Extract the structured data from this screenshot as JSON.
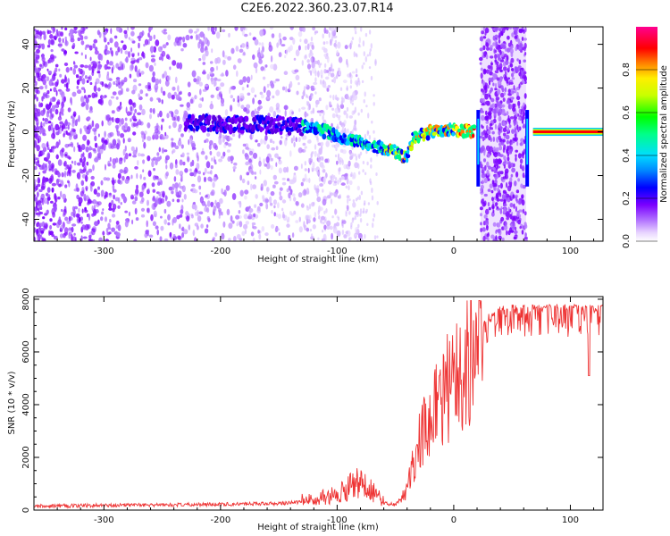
{
  "title": "C2E6.2022.360.23.07.R14",
  "chart_data": [
    {
      "type": "heatmap",
      "xlabel": "Height of straight line (km)",
      "ylabel": "Frequency (Hz)",
      "xlim": [
        -360,
        128
      ],
      "ylim": [
        -50,
        48
      ],
      "xticks": [
        -300,
        -200,
        -100,
        0,
        100
      ],
      "yticks": [
        -40,
        -20,
        0,
        20,
        40
      ],
      "colorbar": {
        "label": "Normalized spectral amplitude",
        "range": [
          0,
          1
        ],
        "ticks": [
          0.0,
          0.2,
          0.4,
          0.6,
          0.8
        ],
        "colors": [
          "#ffffff",
          "#c896ff",
          "#7a00ff",
          "#0000ff",
          "#00ccff",
          "#00ff80",
          "#00ff00",
          "#c8ff00",
          "#ffff00",
          "#ff8000",
          "#ff0000",
          "#ff00a0"
        ]
      },
      "features": {
        "noise_region_km": [
          -360,
          -120
        ],
        "signal_trace": [
          {
            "x": -230,
            "y": 4
          },
          {
            "x": -150,
            "y": 3
          },
          {
            "x": -120,
            "y": 2
          },
          {
            "x": -100,
            "y": -2
          },
          {
            "x": -80,
            "y": -5
          },
          {
            "x": -55,
            "y": -8
          },
          {
            "x": -40,
            "y": -12
          },
          {
            "x": -35,
            "y": -3
          },
          {
            "x": -20,
            "y": 0
          },
          {
            "x": 0,
            "y": 1
          },
          {
            "x": 18,
            "y": 0
          },
          {
            "x": 68,
            "y": 0
          },
          {
            "x": 128,
            "y": 0
          }
        ],
        "noise_band_km": [
          23,
          62
        ],
        "spikes_km": [
          20,
          60
        ]
      }
    },
    {
      "type": "line",
      "xlabel": "Height of straight line (km)",
      "ylabel": "SNR (10 * v/v)",
      "xlim": [
        -360,
        128
      ],
      "ylim": [
        0,
        8100
      ],
      "xticks": [
        -300,
        -200,
        -100,
        0,
        100
      ],
      "yticks": [
        0,
        2000,
        4000,
        6000,
        8000
      ],
      "series": [
        {
          "color": "#ee3333",
          "x": [
            -360,
            -300,
            -250,
            -200,
            -150,
            -120,
            -100,
            -90,
            -80,
            -70,
            -60,
            -50,
            -40,
            -30,
            -20,
            -10,
            0,
            10,
            20,
            30,
            40,
            50,
            60,
            80,
            100,
            120,
            128
          ],
          "y": [
            150,
            180,
            200,
            220,
            250,
            330,
            450,
            650,
            800,
            550,
            250,
            200,
            800,
            2700,
            3700,
            4500,
            5200,
            6000,
            6800,
            7400,
            7700,
            7750,
            7750,
            7750,
            7750,
            7750,
            7750
          ]
        }
      ]
    }
  ]
}
